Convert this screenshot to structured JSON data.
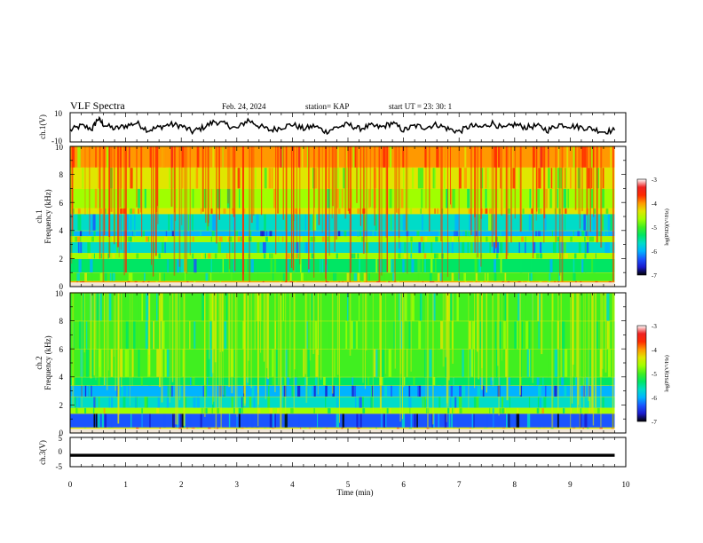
{
  "header": {
    "title": "VLF Spectra",
    "date": "Feb. 24, 2024",
    "station": "station= KAP",
    "start": "start  UT  =   23: 30: 1"
  },
  "chart_data": [
    {
      "id": "ch1-waveform",
      "type": "line",
      "ylabel": "ch.1(V)",
      "ylim": [
        -10,
        10
      ],
      "ytick_labels": [
        "10",
        "-10"
      ],
      "xlim": [
        0,
        10
      ],
      "x": [
        0.0,
        0.2,
        0.4,
        0.5,
        0.6,
        0.8,
        1.0,
        1.2,
        1.4,
        1.6,
        1.8,
        2.0,
        2.2,
        2.4,
        2.6,
        2.8,
        3.0,
        3.2,
        3.4,
        3.6,
        3.8,
        4.0,
        4.2,
        4.4,
        4.6,
        4.8,
        5.0,
        5.2,
        5.4,
        5.6,
        5.8,
        6.0,
        6.2,
        6.4,
        6.6,
        6.8,
        7.0,
        7.2,
        7.4,
        7.6,
        7.8,
        8.0,
        8.2,
        8.4,
        8.6,
        8.8,
        9.0,
        9.2,
        9.4,
        9.6,
        9.8
      ],
      "y": [
        -2,
        1,
        -1,
        6,
        2,
        -1,
        1,
        3,
        -2,
        0,
        2,
        1,
        -3,
        0,
        4,
        2,
        -1,
        5,
        1,
        -2,
        0,
        2,
        -1,
        1,
        -3,
        0,
        2,
        -1,
        1,
        0,
        3,
        -2,
        1,
        0,
        2,
        -1,
        -3,
        1,
        0,
        3,
        -1,
        2,
        0,
        1,
        -2,
        2,
        1,
        0,
        -1,
        -3,
        -2
      ]
    },
    {
      "id": "ch1-spectrogram",
      "type": "heatmap",
      "ylabel": "Frequency (kHz)",
      "ylabel_prefix": "ch.1",
      "ylim": [
        0,
        10
      ],
      "ytick_labels": [
        "0",
        "2",
        "4",
        "6",
        "8",
        "10"
      ],
      "xlim": [
        0,
        10
      ],
      "freq_bands": [
        {
          "from": 0.0,
          "to": 0.4,
          "level": -3.6
        },
        {
          "from": 0.4,
          "to": 1.0,
          "level": -4.8
        },
        {
          "from": 1.0,
          "to": 2.0,
          "level": -5.3
        },
        {
          "from": 2.0,
          "to": 2.4,
          "level": -4.6
        },
        {
          "from": 2.4,
          "to": 3.2,
          "level": -5.6
        },
        {
          "from": 3.2,
          "to": 3.6,
          "level": -4.4
        },
        {
          "from": 3.6,
          "to": 4.0,
          "level": -5.8
        },
        {
          "from": 4.0,
          "to": 5.2,
          "level": -5.4
        },
        {
          "from": 5.2,
          "to": 5.6,
          "level": -4.1
        },
        {
          "from": 5.6,
          "to": 7.0,
          "level": -4.5
        },
        {
          "from": 7.0,
          "to": 8.5,
          "level": -4.1
        },
        {
          "from": 8.5,
          "to": 10.0,
          "level": -3.7
        }
      ],
      "colorbar": {
        "range": [
          -7,
          -3
        ],
        "tick_labels": [
          "-3",
          "-4",
          "-5",
          "-6",
          "-7"
        ],
        "label": "log(PSD)(V²/Hz)"
      }
    },
    {
      "id": "ch2-spectrogram",
      "type": "heatmap",
      "ylabel": "Frequency (kHz)",
      "ylabel_prefix": "ch.2",
      "ylim": [
        0,
        10
      ],
      "ytick_labels": [
        "0",
        "2",
        "4",
        "6",
        "8",
        "10"
      ],
      "xlim": [
        0,
        10
      ],
      "freq_bands": [
        {
          "from": 0.0,
          "to": 0.4,
          "level": -4.0
        },
        {
          "from": 0.4,
          "to": 1.4,
          "level": -6.2
        },
        {
          "from": 1.4,
          "to": 1.8,
          "level": -4.6
        },
        {
          "from": 1.8,
          "to": 2.6,
          "level": -5.4
        },
        {
          "from": 2.6,
          "to": 3.4,
          "level": -6.0
        },
        {
          "from": 3.4,
          "to": 4.0,
          "level": -5.2
        },
        {
          "from": 4.0,
          "to": 6.0,
          "level": -4.9
        },
        {
          "from": 6.0,
          "to": 8.0,
          "level": -4.8
        },
        {
          "from": 8.0,
          "to": 10.0,
          "level": -4.9
        }
      ],
      "colorbar": {
        "range": [
          -7,
          -3
        ],
        "tick_labels": [
          "-3",
          "-4",
          "-5",
          "-6",
          "-7"
        ],
        "label": "log(PSD)(V²/Hz)"
      }
    },
    {
      "id": "ch3-waveform",
      "type": "line",
      "ylabel": "ch.3(V)",
      "ylim": [
        -5,
        5
      ],
      "ytick_labels": [
        "5",
        "0",
        "-5"
      ],
      "xlim": [
        0,
        10
      ],
      "x": [
        0,
        9.8
      ],
      "y": [
        -1.1,
        -1.1
      ],
      "band": [
        -0.6,
        -1.6
      ]
    }
  ],
  "x_axis": {
    "label": "Time  (min)",
    "tick_labels": [
      "0",
      "1",
      "2",
      "3",
      "4",
      "5",
      "6",
      "7",
      "8",
      "9",
      "10"
    ]
  },
  "colors": {
    "palette": [
      "#000000",
      "#1a1acc",
      "#1a55ff",
      "#00b4ff",
      "#00dcc8",
      "#00e664",
      "#40ef20",
      "#a0ff00",
      "#e0e600",
      "#ff9900",
      "#ff2a00",
      "#ee2222",
      "#ffffff"
    ]
  }
}
